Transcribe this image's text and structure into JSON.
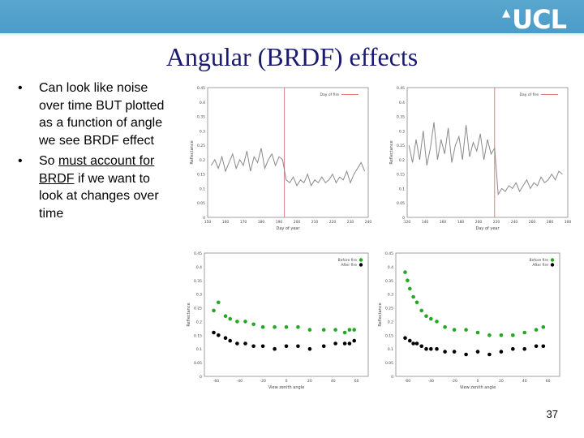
{
  "header": {
    "logo_text": "UCL"
  },
  "slide": {
    "title": "Angular (BRDF) effects",
    "bullet1": "Can look like noise over time BUT plotted as a function of angle we see BRDF effect",
    "bullet2_pre": "So ",
    "bullet2_u": "must account for BRDF",
    "bullet2_post": " if we want to look at changes over time",
    "page_number": "37"
  },
  "colors": {
    "title": "#1a1a6e",
    "banner": "#4a9bc8",
    "green": "#22a822",
    "black": "#000000"
  },
  "chart_data": [
    {
      "type": "line",
      "ylabel": "Reflectance",
      "xlabel": "Day of year",
      "legend": "Day of fire",
      "xlim": [
        150,
        240
      ],
      "ylim": [
        0,
        0.45
      ],
      "xticks": [
        150,
        160,
        170,
        180,
        190,
        200,
        210,
        220,
        230,
        240
      ],
      "yticks": [
        0,
        0.05,
        0.1,
        0.15,
        0.2,
        0.25,
        0.3,
        0.35,
        0.4,
        0.45
      ],
      "fire_day": 193,
      "x": [
        152,
        154,
        156,
        158,
        160,
        162,
        164,
        166,
        168,
        170,
        172,
        174,
        176,
        178,
        180,
        182,
        184,
        186,
        188,
        190,
        192,
        194,
        196,
        198,
        200,
        202,
        204,
        206,
        208,
        210,
        212,
        214,
        216,
        218,
        220,
        222,
        224,
        226,
        228,
        230,
        232,
        234,
        236,
        238
      ],
      "y": [
        0.18,
        0.2,
        0.17,
        0.21,
        0.16,
        0.19,
        0.22,
        0.17,
        0.2,
        0.18,
        0.23,
        0.16,
        0.21,
        0.19,
        0.24,
        0.17,
        0.2,
        0.22,
        0.18,
        0.21,
        0.2,
        0.13,
        0.12,
        0.14,
        0.11,
        0.13,
        0.12,
        0.15,
        0.11,
        0.13,
        0.12,
        0.14,
        0.12,
        0.13,
        0.15,
        0.12,
        0.14,
        0.13,
        0.16,
        0.12,
        0.15,
        0.17,
        0.19,
        0.16
      ]
    },
    {
      "type": "line",
      "ylabel": "Reflectance",
      "xlabel": "Day of year",
      "legend": "Day of fire",
      "xlim": [
        120,
        300
      ],
      "ylim": [
        0,
        0.45
      ],
      "xticks": [
        120,
        140,
        160,
        180,
        200,
        220,
        240,
        260,
        280,
        300
      ],
      "yticks": [
        0,
        0.05,
        0.1,
        0.15,
        0.2,
        0.25,
        0.3,
        0.35,
        0.4,
        0.45
      ],
      "fire_day": 218,
      "x": [
        122,
        126,
        130,
        134,
        138,
        142,
        146,
        150,
        154,
        158,
        162,
        166,
        170,
        174,
        178,
        182,
        186,
        190,
        194,
        198,
        202,
        206,
        210,
        214,
        218,
        222,
        226,
        230,
        234,
        238,
        242,
        246,
        250,
        254,
        258,
        262,
        266,
        270,
        274,
        278,
        282,
        286,
        290,
        294
      ],
      "y": [
        0.25,
        0.19,
        0.27,
        0.2,
        0.3,
        0.18,
        0.24,
        0.33,
        0.2,
        0.27,
        0.22,
        0.31,
        0.19,
        0.25,
        0.28,
        0.2,
        0.32,
        0.21,
        0.26,
        0.23,
        0.29,
        0.2,
        0.27,
        0.22,
        0.24,
        0.08,
        0.1,
        0.09,
        0.11,
        0.1,
        0.12,
        0.09,
        0.11,
        0.13,
        0.1,
        0.12,
        0.11,
        0.14,
        0.12,
        0.13,
        0.15,
        0.13,
        0.16,
        0.15
      ]
    },
    {
      "type": "scatter",
      "ylabel": "Reflectance",
      "xlabel": "View zenith angle",
      "xlim": [
        -70,
        70
      ],
      "ylim": [
        0,
        0.45
      ],
      "xticks": [
        -60,
        -40,
        -20,
        0,
        20,
        40,
        60
      ],
      "yticks": [
        0,
        0.05,
        0.1,
        0.15,
        0.2,
        0.25,
        0.3,
        0.35,
        0.4,
        0.45
      ],
      "series": [
        {
          "name": "Before fire",
          "color": "#22a822",
          "points": [
            [
              -62,
              0.24
            ],
            [
              -58,
              0.27
            ],
            [
              -52,
              0.22
            ],
            [
              -48,
              0.21
            ],
            [
              -42,
              0.2
            ],
            [
              -35,
              0.2
            ],
            [
              -28,
              0.19
            ],
            [
              -20,
              0.18
            ],
            [
              -10,
              0.18
            ],
            [
              0,
              0.18
            ],
            [
              10,
              0.18
            ],
            [
              20,
              0.17
            ],
            [
              32,
              0.17
            ],
            [
              42,
              0.17
            ],
            [
              50,
              0.16
            ],
            [
              54,
              0.17
            ],
            [
              58,
              0.17
            ]
          ]
        },
        {
          "name": "After fire",
          "color": "#000000",
          "points": [
            [
              -62,
              0.16
            ],
            [
              -58,
              0.15
            ],
            [
              -52,
              0.14
            ],
            [
              -48,
              0.13
            ],
            [
              -42,
              0.12
            ],
            [
              -35,
              0.12
            ],
            [
              -28,
              0.11
            ],
            [
              -20,
              0.11
            ],
            [
              -10,
              0.1
            ],
            [
              0,
              0.11
            ],
            [
              10,
              0.11
            ],
            [
              20,
              0.1
            ],
            [
              32,
              0.11
            ],
            [
              42,
              0.12
            ],
            [
              50,
              0.12
            ],
            [
              54,
              0.12
            ],
            [
              58,
              0.13
            ]
          ]
        }
      ]
    },
    {
      "type": "scatter",
      "ylabel": "Reflectance",
      "xlabel": "View zenith angle",
      "xlim": [
        -70,
        70
      ],
      "ylim": [
        0,
        0.45
      ],
      "xticks": [
        -60,
        -40,
        -20,
        0,
        20,
        40,
        60
      ],
      "yticks": [
        0,
        0.05,
        0.1,
        0.15,
        0.2,
        0.25,
        0.3,
        0.35,
        0.4,
        0.45
      ],
      "series": [
        {
          "name": "Before fire",
          "color": "#22a822",
          "points": [
            [
              -62,
              0.38
            ],
            [
              -60,
              0.35
            ],
            [
              -58,
              0.32
            ],
            [
              -55,
              0.29
            ],
            [
              -52,
              0.27
            ],
            [
              -48,
              0.24
            ],
            [
              -44,
              0.22
            ],
            [
              -40,
              0.21
            ],
            [
              -35,
              0.2
            ],
            [
              -28,
              0.18
            ],
            [
              -20,
              0.17
            ],
            [
              -10,
              0.17
            ],
            [
              0,
              0.16
            ],
            [
              10,
              0.15
            ],
            [
              20,
              0.15
            ],
            [
              30,
              0.15
            ],
            [
              40,
              0.16
            ],
            [
              50,
              0.17
            ],
            [
              56,
              0.18
            ]
          ]
        },
        {
          "name": "After fire",
          "color": "#000000",
          "points": [
            [
              -62,
              0.14
            ],
            [
              -58,
              0.13
            ],
            [
              -55,
              0.12
            ],
            [
              -52,
              0.12
            ],
            [
              -48,
              0.11
            ],
            [
              -44,
              0.1
            ],
            [
              -40,
              0.1
            ],
            [
              -35,
              0.1
            ],
            [
              -28,
              0.09
            ],
            [
              -20,
              0.09
            ],
            [
              -10,
              0.08
            ],
            [
              0,
              0.09
            ],
            [
              10,
              0.08
            ],
            [
              20,
              0.09
            ],
            [
              30,
              0.1
            ],
            [
              40,
              0.1
            ],
            [
              50,
              0.11
            ],
            [
              56,
              0.11
            ]
          ]
        }
      ]
    }
  ]
}
